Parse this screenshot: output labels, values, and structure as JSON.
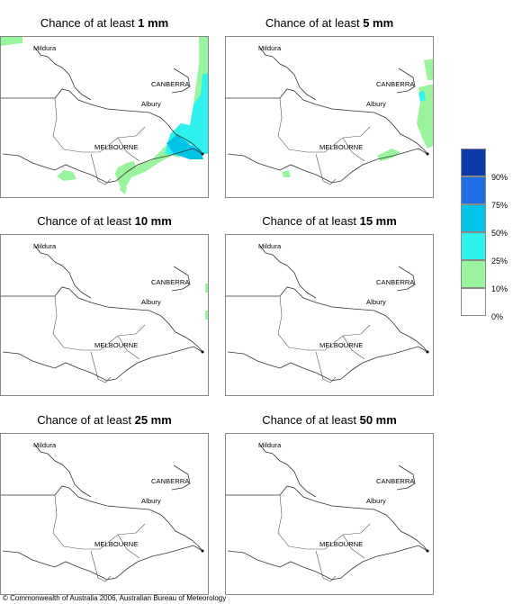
{
  "panels": [
    {
      "prefix": "Chance of at least ",
      "amount": "1 mm"
    },
    {
      "prefix": "Chance of at least ",
      "amount": "5 mm"
    },
    {
      "prefix": "Chance of at least ",
      "amount": "10 mm"
    },
    {
      "prefix": "Chance of at least ",
      "amount": "15 mm"
    },
    {
      "prefix": "Chance of at least ",
      "amount": "25 mm"
    },
    {
      "prefix": "Chance of at least ",
      "amount": "50 mm"
    }
  ],
  "places": {
    "mildura": "Mildura",
    "canberra": "CANBERRA",
    "albury": "Albury",
    "melbourne": "MELBOURNE"
  },
  "legend": {
    "labels": [
      "90%",
      "75%",
      "50%",
      "25%",
      "10%",
      "0%"
    ],
    "colors": [
      "#0a3aa8",
      "#1f6ee6",
      "#00c4e8",
      "#2ef2ee",
      "#99f59d",
      "#ffffff"
    ]
  },
  "copyright": "© Commonwealth of Australia 2006, Australian Bureau of Meteorology"
}
